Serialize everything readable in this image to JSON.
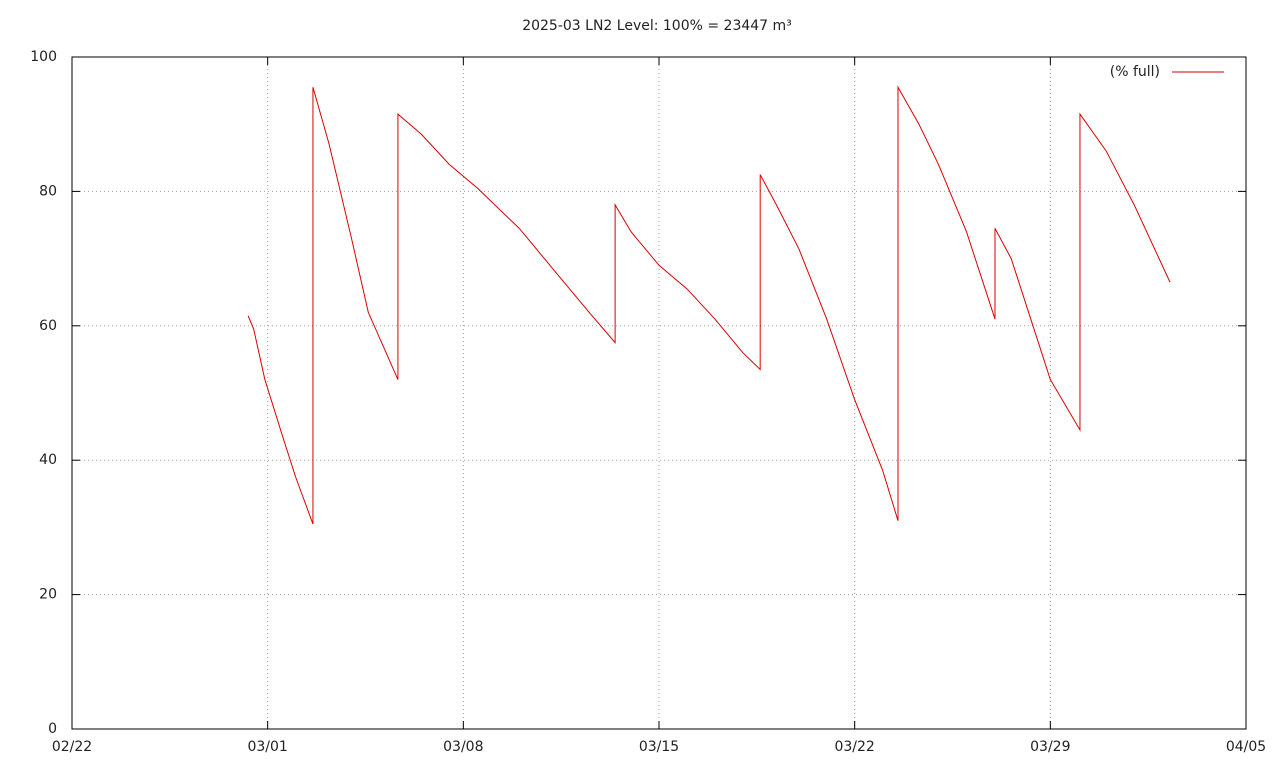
{
  "chart_data": {
    "type": "line",
    "title": "2025-03 LN2 Level: 100% = 23447 m³",
    "x": [
      6.3,
      6.5,
      6.9,
      7.5,
      8.0,
      8.62,
      8.62,
      9.2,
      10,
      10.6,
      11.66,
      11.66,
      12.5,
      13.5,
      14.5,
      16,
      17.5,
      18.5,
      19.43,
      19.43,
      20,
      21,
      22,
      23,
      24,
      24.62,
      24.62,
      25.2,
      26,
      27,
      28,
      29,
      29.55,
      29.55,
      30.3,
      31,
      32,
      33.02,
      33.02,
      33.6,
      34.3,
      35,
      36.06,
      36.06,
      37,
      38,
      39.28
    ],
    "series": [
      {
        "name": "(% full)",
        "color": "#dd0000",
        "values": [
          61.5,
          59.5,
          52,
          44,
          37.5,
          30.5,
          95.5,
          87,
          73,
          62,
          52,
          91.5,
          88.5,
          84,
          80.5,
          74.5,
          67,
          62,
          57.5,
          78,
          74,
          69,
          65.5,
          61,
          56,
          53.5,
          82.5,
          78,
          71.5,
          61,
          49,
          38.5,
          31,
          95.5,
          90,
          84,
          74,
          61,
          74.5,
          70,
          61,
          52,
          44.5,
          91.5,
          86,
          78,
          66.5
        ]
      }
    ],
    "xlim": [
      0,
      42
    ],
    "xticks": [
      {
        "value": 0,
        "label": "02/22"
      },
      {
        "value": 7,
        "label": "03/01"
      },
      {
        "value": 14,
        "label": "03/08"
      },
      {
        "value": 21,
        "label": "03/15"
      },
      {
        "value": 28,
        "label": "03/22"
      },
      {
        "value": 35,
        "label": "03/29"
      },
      {
        "value": 42,
        "label": "04/05"
      }
    ],
    "ylim": [
      0,
      100
    ],
    "yticks": [
      0,
      20,
      40,
      60,
      80,
      100
    ],
    "grid": true,
    "legend": "top-right"
  }
}
